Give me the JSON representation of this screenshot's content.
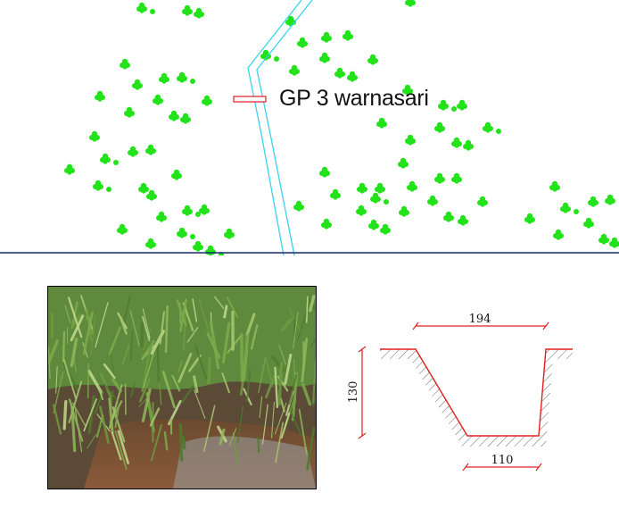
{
  "map": {
    "label": "GP 3 warnasari",
    "colors": {
      "vegetation": "#22e31a",
      "stream": "#38d4ee",
      "marker": "#e03030",
      "baseline": "#1a2a6e"
    }
  },
  "cross_section": {
    "top_width": "194",
    "depth": "130",
    "bottom_width": "110",
    "colors": {
      "dimension": "#e02020",
      "outline": "#444444"
    }
  },
  "photo": {
    "subject": "vegetated-drainage-channel"
  }
}
